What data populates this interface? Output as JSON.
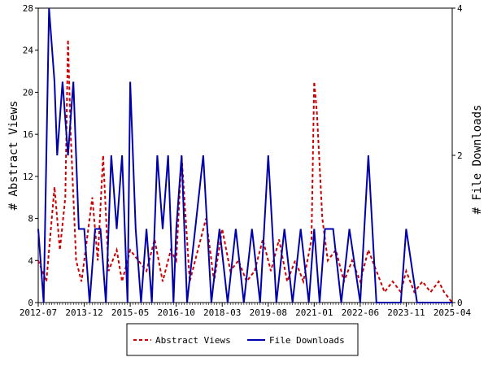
{
  "chart_data": {
    "type": "line",
    "y_left": {
      "label": "# Abstract Views",
      "range": [
        0,
        28
      ],
      "ticks": [
        "0",
        "4",
        "8",
        "12",
        "16",
        "20",
        "24",
        "28"
      ]
    },
    "y_right": {
      "label": "# File Downloads",
      "range": [
        0,
        4
      ],
      "ticks": [
        "0",
        "2",
        "4"
      ]
    },
    "x_axis": {
      "range": [
        "2012-07",
        "2025-04"
      ],
      "ticks": [
        "2012-07",
        "2013-12",
        "2015-05",
        "2016-10",
        "2018-03",
        "2019-08",
        "2021-01",
        "2022-06",
        "2023-11",
        "2025-04"
      ]
    },
    "legend": {
      "position": "bottom"
    },
    "series": [
      {
        "name": "Abstract Views",
        "axis": "left",
        "style": "dashed",
        "color": "#cc0000",
        "x": [
          "2012-07",
          "2012-10",
          "2013-01",
          "2013-03",
          "2013-05",
          "2013-06",
          "2013-07",
          "2013-09",
          "2013-11",
          "2014-01",
          "2014-03",
          "2014-05",
          "2014-07",
          "2014-09",
          "2014-12",
          "2015-02",
          "2015-05",
          "2015-08",
          "2015-11",
          "2016-02",
          "2016-05",
          "2016-08",
          "2016-10",
          "2016-12",
          "2017-03",
          "2017-06",
          "2017-09",
          "2017-12",
          "2018-03",
          "2018-06",
          "2018-09",
          "2018-12",
          "2019-03",
          "2019-06",
          "2019-09",
          "2019-12",
          "2020-03",
          "2020-06",
          "2020-09",
          "2020-12",
          "2021-01",
          "2021-02",
          "2021-04",
          "2021-06",
          "2021-09",
          "2021-12",
          "2022-03",
          "2022-06",
          "2022-09",
          "2022-12",
          "2023-03",
          "2023-06",
          "2023-09",
          "2023-11",
          "2024-02",
          "2024-05",
          "2024-08",
          "2024-11",
          "2025-01",
          "2025-04"
        ],
        "values": [
          4,
          2,
          11,
          5,
          10,
          25,
          16,
          4,
          2,
          6,
          10,
          4,
          14,
          3,
          5,
          2,
          5,
          4,
          3,
          6,
          2,
          5,
          4,
          14,
          2,
          5,
          8,
          2,
          7,
          3,
          4,
          2,
          3,
          6,
          3,
          6,
          2,
          4,
          2,
          6,
          21,
          18,
          8,
          4,
          5,
          2,
          4,
          2,
          5,
          3,
          1,
          2,
          1,
          3,
          1,
          2,
          1,
          2,
          1,
          0
        ]
      },
      {
        "name": "File Downloads",
        "axis": "right",
        "style": "solid",
        "color": "#0000aa",
        "x": [
          "2012-07",
          "2012-09",
          "2012-11",
          "2013-01",
          "2013-02",
          "2013-04",
          "2013-06",
          "2013-08",
          "2013-10",
          "2013-12",
          "2014-02",
          "2014-04",
          "2014-06",
          "2014-08",
          "2014-10",
          "2014-12",
          "2015-02",
          "2015-04",
          "2015-05",
          "2015-07",
          "2015-09",
          "2015-11",
          "2016-01",
          "2016-03",
          "2016-05",
          "2016-07",
          "2016-09",
          "2016-10",
          "2016-12",
          "2017-02",
          "2017-05",
          "2017-08",
          "2017-11",
          "2018-02",
          "2018-05",
          "2018-08",
          "2018-11",
          "2019-02",
          "2019-05",
          "2019-08",
          "2019-11",
          "2020-02",
          "2020-05",
          "2020-08",
          "2020-11",
          "2021-01",
          "2021-03",
          "2021-05",
          "2021-08",
          "2021-11",
          "2022-02",
          "2022-06",
          "2022-09",
          "2022-12",
          "2023-03",
          "2023-06",
          "2023-09",
          "2023-11",
          "2024-03",
          "2024-07",
          "2024-11",
          "2025-04"
        ],
        "values": [
          1,
          0,
          4,
          3,
          2,
          3,
          2,
          3,
          1,
          1,
          0,
          1,
          1,
          0,
          2,
          1,
          2,
          0,
          3,
          1,
          0,
          1,
          0,
          2,
          1,
          2,
          0,
          1,
          2,
          0,
          1,
          2,
          0,
          1,
          0,
          1,
          0,
          1,
          0,
          2,
          0,
          1,
          0,
          1,
          0,
          1,
          0,
          1,
          1,
          0,
          1,
          0,
          2,
          0,
          0,
          0,
          0,
          1,
          0,
          0,
          0,
          0
        ]
      }
    ]
  }
}
